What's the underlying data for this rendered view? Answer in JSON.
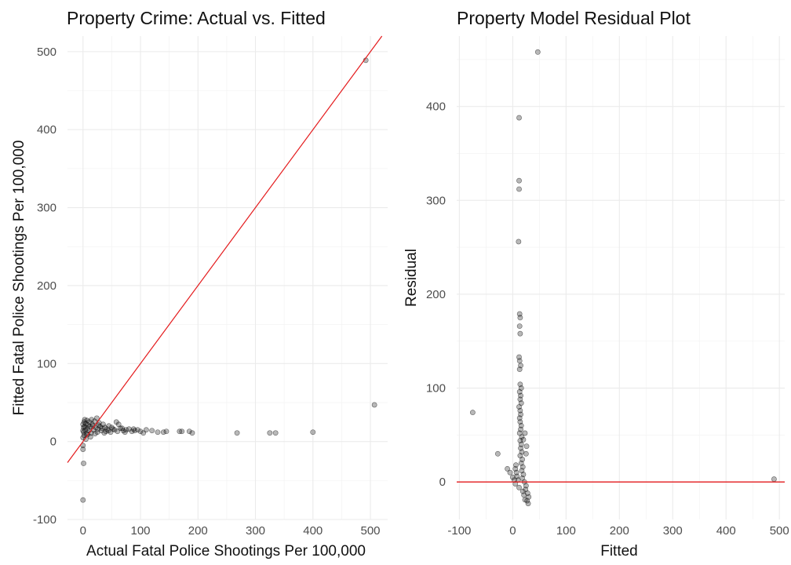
{
  "chart_data": [
    {
      "type": "scatter",
      "title": "Property Crime: Actual vs. Fitted",
      "xlabel": "Actual Fatal Police Shootings Per 100,000",
      "ylabel": "Fitted Fatal Police Shootings Per 100,000",
      "xlim": [
        -27,
        530
      ],
      "ylim": [
        -100,
        520
      ],
      "x_ticks": [
        0,
        100,
        200,
        300,
        400,
        500
      ],
      "y_ticks": [
        -100,
        0,
        100,
        200,
        300,
        400,
        500
      ],
      "grid": true,
      "reference_line": {
        "type": "identity",
        "slope": 1,
        "intercept": 0,
        "color": "#e41a1c"
      },
      "points_color": "#000000",
      "points": [
        [
          507,
          47
        ],
        [
          492,
          489
        ],
        [
          400,
          12
        ],
        [
          335,
          11
        ],
        [
          325,
          11
        ],
        [
          268,
          11
        ],
        [
          190,
          11
        ],
        [
          185,
          13
        ],
        [
          172,
          13
        ],
        [
          168,
          13
        ],
        [
          145,
          13
        ],
        [
          140,
          12
        ],
        [
          130,
          12
        ],
        [
          120,
          14
        ],
        [
          110,
          15
        ],
        [
          100,
          13
        ],
        [
          95,
          15
        ],
        [
          90,
          14
        ],
        [
          85,
          13
        ],
        [
          80,
          16
        ],
        [
          75,
          15
        ],
        [
          70,
          14
        ],
        [
          65,
          17
        ],
        [
          62,
          22
        ],
        [
          58,
          25
        ],
        [
          55,
          15
        ],
        [
          50,
          18
        ],
        [
          48,
          12
        ],
        [
          45,
          20
        ],
        [
          42,
          16
        ],
        [
          40,
          13
        ],
        [
          38,
          18
        ],
        [
          35,
          22
        ],
        [
          32,
          14
        ],
        [
          30,
          19
        ],
        [
          28,
          24
        ],
        [
          26,
          16
        ],
        [
          25,
          12
        ],
        [
          24,
          30
        ],
        [
          22,
          18
        ],
        [
          20,
          26
        ],
        [
          18,
          15
        ],
        [
          16,
          22
        ],
        [
          15,
          28
        ],
        [
          14,
          11
        ],
        [
          12,
          19
        ],
        [
          11,
          25
        ],
        [
          10,
          14
        ],
        [
          9,
          21
        ],
        [
          8,
          17
        ],
        [
          7,
          27
        ],
        [
          6,
          10
        ],
        [
          5,
          23
        ],
        [
          4,
          15
        ],
        [
          3,
          19
        ],
        [
          2,
          8
        ],
        [
          2,
          25
        ],
        [
          1,
          12
        ],
        [
          1,
          18
        ],
        [
          0,
          5
        ],
        [
          0,
          14
        ],
        [
          0,
          22
        ],
        [
          0,
          -5
        ],
        [
          0,
          -10
        ],
        [
          1,
          -28
        ],
        [
          0,
          -75
        ],
        [
          5,
          3
        ],
        [
          3,
          28
        ],
        [
          8,
          9
        ],
        [
          13,
          6
        ],
        [
          17,
          20
        ],
        [
          21,
          10
        ],
        [
          27,
          21
        ],
        [
          33,
          17
        ],
        [
          37,
          11
        ],
        [
          44,
          14
        ],
        [
          52,
          16
        ],
        [
          60,
          13
        ],
        [
          68,
          17
        ],
        [
          73,
          12
        ],
        [
          88,
          16
        ],
        [
          105,
          11
        ]
      ]
    },
    {
      "type": "scatter",
      "title": "Property Model Residual Plot",
      "xlabel": "Fitted",
      "ylabel": "Residual",
      "xlim": [
        -105,
        510
      ],
      "ylim": [
        -40,
        475
      ],
      "x_ticks": [
        -100,
        0,
        100,
        200,
        300,
        400,
        500
      ],
      "y_ticks": [
        0,
        100,
        200,
        300,
        400
      ],
      "grid": true,
      "reference_line": {
        "type": "horizontal",
        "y": 0,
        "color": "#e41a1c"
      },
      "points_color": "#000000",
      "points": [
        [
          47,
          458
        ],
        [
          12,
          388
        ],
        [
          12,
          321
        ],
        [
          12,
          312
        ],
        [
          11,
          256
        ],
        [
          13,
          179
        ],
        [
          14,
          175
        ],
        [
          13,
          166
        ],
        [
          14,
          158
        ],
        [
          12,
          133
        ],
        [
          13,
          129
        ],
        [
          15,
          124
        ],
        [
          13,
          120
        ],
        [
          14,
          104
        ],
        [
          16,
          100
        ],
        [
          13,
          96
        ],
        [
          15,
          92
        ],
        [
          14,
          88
        ],
        [
          16,
          84
        ],
        [
          12,
          80
        ],
        [
          14,
          76
        ],
        [
          15,
          72
        ],
        [
          13,
          68
        ],
        [
          14,
          64
        ],
        [
          16,
          60
        ],
        [
          15,
          56
        ],
        [
          13,
          52
        ],
        [
          17,
          48
        ],
        [
          14,
          44
        ],
        [
          16,
          40
        ],
        [
          15,
          36
        ],
        [
          17,
          32
        ],
        [
          14,
          28
        ],
        [
          18,
          24
        ],
        [
          16,
          20
        ],
        [
          19,
          16
        ],
        [
          17,
          12
        ],
        [
          20,
          8
        ],
        [
          18,
          4
        ],
        [
          22,
          0
        ],
        [
          25,
          -4
        ],
        [
          24,
          -8
        ],
        [
          28,
          -12
        ],
        [
          30,
          -16
        ],
        [
          27,
          -20
        ],
        [
          29,
          -23
        ],
        [
          23,
          -19
        ],
        [
          21,
          -14
        ],
        [
          19,
          -10
        ],
        [
          12,
          -6
        ],
        [
          10,
          2
        ],
        [
          8,
          6
        ],
        [
          7,
          10
        ],
        [
          5,
          14
        ],
        [
          6,
          18
        ],
        [
          25,
          30
        ],
        [
          26,
          38
        ],
        [
          20,
          45
        ],
        [
          23,
          52
        ],
        [
          -75,
          74
        ],
        [
          -28,
          30
        ],
        [
          -10,
          14
        ],
        [
          -5,
          10
        ],
        [
          0,
          5
        ],
        [
          3,
          2
        ],
        [
          5,
          -2
        ],
        [
          490,
          3
        ]
      ]
    }
  ]
}
